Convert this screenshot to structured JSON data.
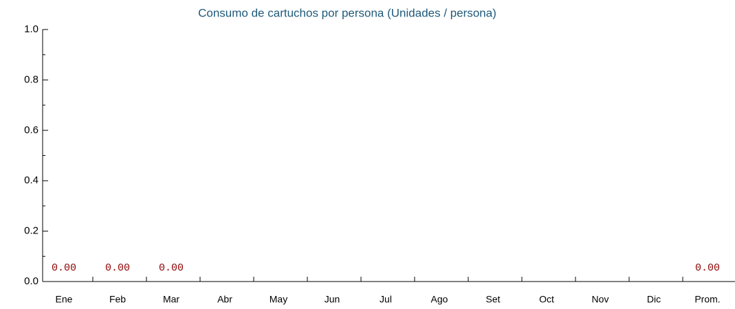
{
  "chart_data": {
    "type": "bar",
    "title": "Consumo de cartuchos por persona (Unidades / persona)",
    "categories": [
      "Ene",
      "Feb",
      "Mar",
      "Abr",
      "May",
      "Jun",
      "Jul",
      "Ago",
      "Set",
      "Oct",
      "Nov",
      "Dic",
      "Prom."
    ],
    "values": [
      0,
      0,
      0,
      null,
      null,
      null,
      null,
      null,
      null,
      null,
      null,
      null,
      0
    ],
    "value_labels": [
      "0.00",
      "0.00",
      "0.00",
      null,
      null,
      null,
      null,
      null,
      null,
      null,
      null,
      null,
      "0.00"
    ],
    "color": "#8b0000",
    "ylim": [
      0,
      1
    ],
    "yticks": [
      {
        "value": 0,
        "label": "0.0"
      },
      {
        "value": 0.2,
        "label": "0.2"
      },
      {
        "value": 0.4,
        "label": "0.4"
      },
      {
        "value": 0.6,
        "label": "0.6"
      },
      {
        "value": 0.8,
        "label": "0.8"
      },
      {
        "value": 1,
        "label": "1.0"
      }
    ],
    "grid": false
  }
}
